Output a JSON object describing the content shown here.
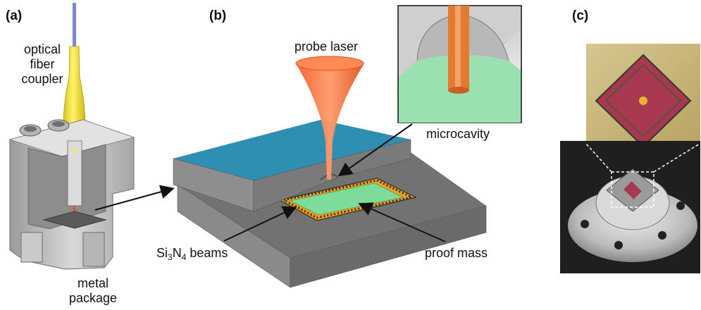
{
  "panels": {
    "a": {
      "panel_label": "(a)",
      "fiber_label_lines": [
        "optical",
        "fiber",
        "coupler"
      ],
      "package_label_lines": [
        "metal",
        "package"
      ]
    },
    "b": {
      "panel_label": "(b)",
      "probe_laser_label": "probe laser",
      "microcavity_label": "microcavity",
      "beams_label": {
        "prefix": "Si",
        "sub1": "3",
        "mid": "N",
        "sub2": "4",
        "suffix": " beams"
      },
      "proof_mass_label": "proof mass"
    },
    "c": {
      "panel_label": "(c)"
    }
  },
  "colors": {
    "fiber_yellow": "#f2e229",
    "fiber_core": "#7b86d8",
    "metal_gray": "#c4c4c4",
    "chip_top_blue": "#2f8fb3",
    "chip_side_gray": "#808080",
    "proof_mass_green": "#7ddc9a",
    "beam_orange": "#f0a01e",
    "laser_orange": "#f05a1e",
    "photo_chip_red": "#a8384f",
    "photo_background_gold": "#c9b77a"
  }
}
